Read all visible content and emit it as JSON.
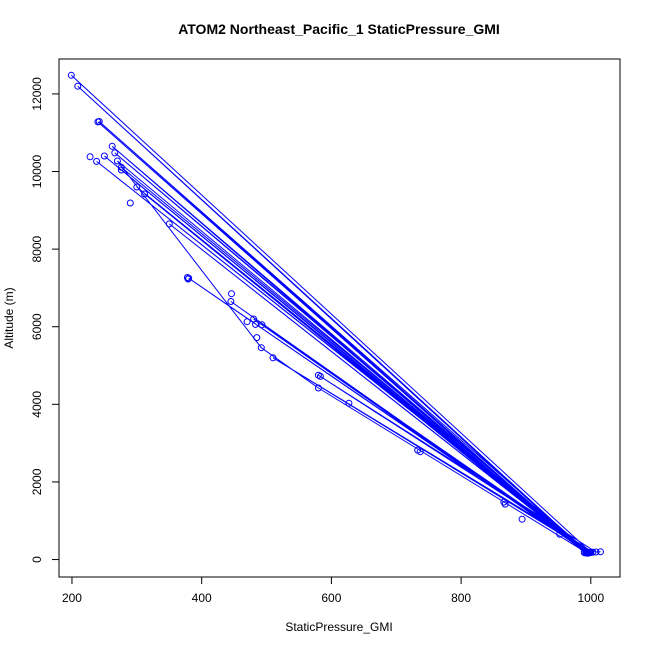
{
  "chart_data": {
    "type": "scatter",
    "title": "ATOM2 Northeast_Pacific_1 StaticPressure_GMI",
    "xlabel": "StaticPressure_GMI",
    "ylabel": "Altitude (m)",
    "xlim": [
      180,
      1045
    ],
    "ylim": [
      -450,
      12900
    ],
    "x_ticks": [
      200,
      400,
      600,
      800,
      1000
    ],
    "y_ticks": [
      0,
      2000,
      4000,
      6000,
      8000,
      10000,
      12000
    ],
    "grid": false,
    "legend": "none",
    "color": "#0000ff",
    "series": [
      {
        "mode": "lines+markers",
        "x": [
          199,
          1000,
          993,
          209,
          995,
          262,
          990,
          240,
          992,
          312,
          995,
          580,
          492,
          270,
          995,
          250,
          993,
          242,
          997,
          266,
          994,
          276,
          994,
          350,
          995,
          445,
          996,
          480,
          994,
          300,
          996,
          276,
          997,
          380,
          998,
          238,
          999,
          493,
          1000,
          510,
          1003,
          580,
          1008,
          1015
        ],
        "y": [
          12480,
          190,
          170,
          12200,
          175,
          10650,
          180,
          11280,
          170,
          9420,
          160,
          4420,
          5460,
          10270,
          180,
          10400,
          170,
          11290,
          175,
          10480,
          170,
          10040,
          175,
          8650,
          170,
          6650,
          180,
          6200,
          175,
          9600,
          180,
          10110,
          170,
          7250,
          175,
          10260,
          180,
          6050,
          185,
          5200,
          190,
          4750,
          195,
          200
        ]
      },
      {
        "mode": "markers",
        "x": [
          228,
          290,
          378,
          379,
          446,
          470,
          483,
          485,
          583,
          627,
          733,
          737,
          866,
          868,
          894,
          952,
          996
        ],
        "y": [
          10380,
          9190,
          7270,
          7230,
          6850,
          6130,
          6060,
          5720,
          4720,
          4030,
          2820,
          2780,
          1480,
          1430,
          1040,
          650,
          180
        ]
      }
    ]
  }
}
